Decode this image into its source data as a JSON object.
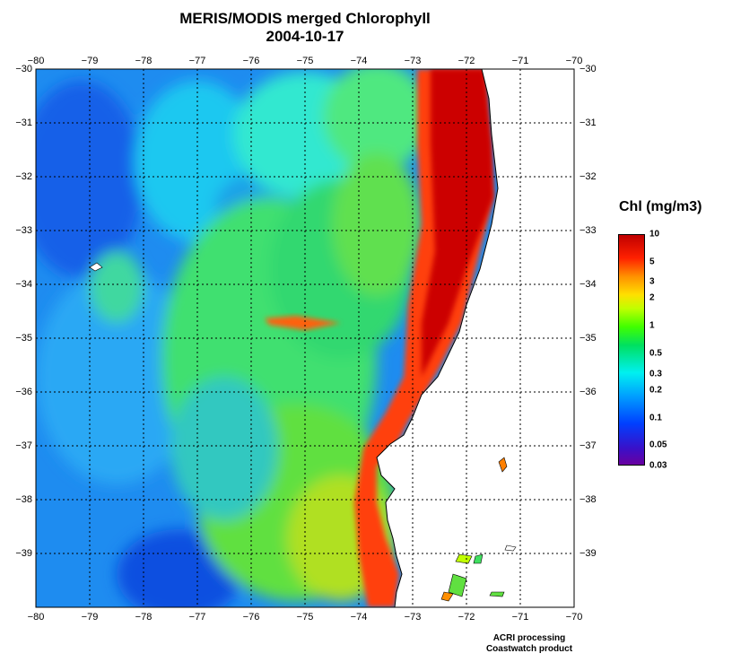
{
  "title": "MERIS/MODIS merged Chlorophyll",
  "date": "2004-10-17",
  "colorbar": {
    "title": "Chl (mg/m3)",
    "labels": [
      "10",
      "5",
      "3",
      "2",
      "1",
      "0.5",
      "0.3",
      "0.2",
      "0.1",
      "0.05",
      "0.03"
    ],
    "values": [
      10,
      5,
      3,
      2,
      1,
      0.5,
      0.3,
      0.2,
      0.1,
      0.05,
      0.03
    ],
    "range": [
      0.03,
      10
    ],
    "scale": "log",
    "colors": [
      "#6a00a0",
      "#0040ff",
      "#00f0f0",
      "#00e060",
      "#40ff00",
      "#ffe000",
      "#ff9000",
      "#ff2000",
      "#c00000"
    ]
  },
  "map": {
    "lon_range": [
      -80,
      -70
    ],
    "lat_range": [
      -40,
      -30
    ],
    "lon_ticks": [
      "−80",
      "−79",
      "−78",
      "−77",
      "−76",
      "−75",
      "−74",
      "−73",
      "−72",
      "−71",
      "−70"
    ],
    "lat_ticks": [
      "−30",
      "−31",
      "−32",
      "−33",
      "−34",
      "−35",
      "−36",
      "−37",
      "−38",
      "−39"
    ],
    "land_color": "#ffffff",
    "gridlines": true
  },
  "credits": [
    "ACRI processing",
    "Coastwatch product"
  ]
}
